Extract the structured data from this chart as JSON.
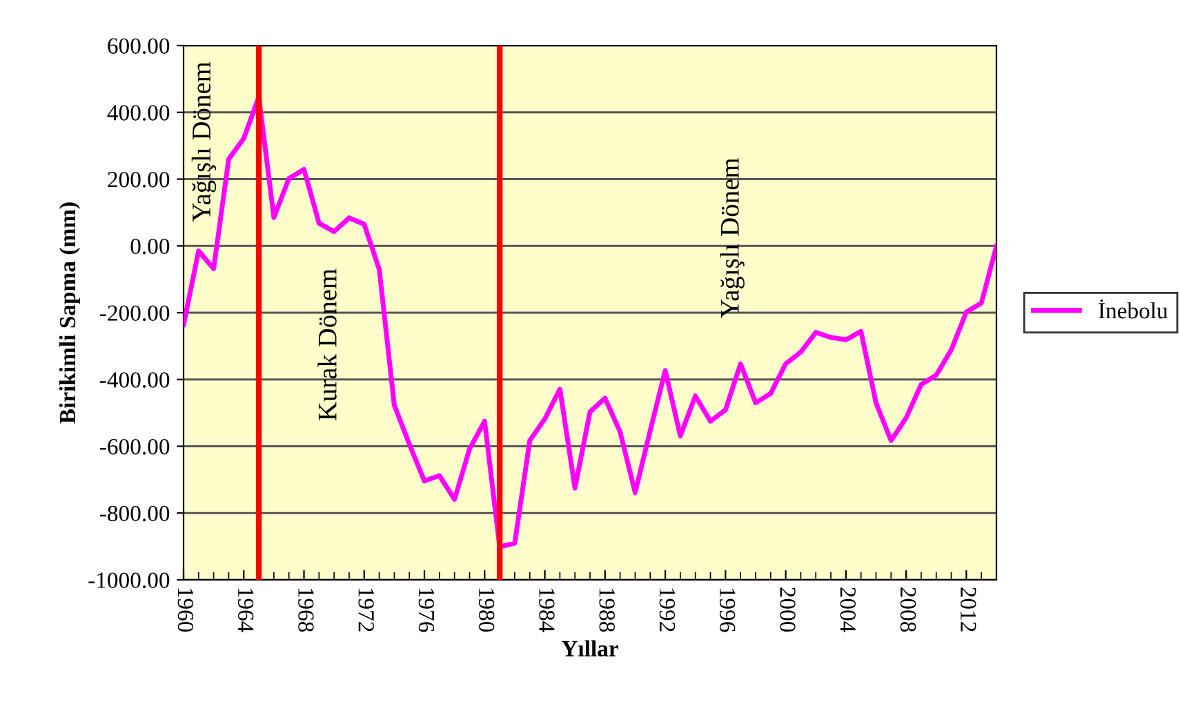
{
  "chart_data": {
    "type": "line",
    "xlabel": "Yıllar",
    "ylabel": "Birikimli Sapma (mm)",
    "x": [
      1960,
      1961,
      1962,
      1963,
      1964,
      1965,
      1966,
      1967,
      1968,
      1969,
      1970,
      1971,
      1972,
      1973,
      1974,
      1975,
      1976,
      1977,
      1978,
      1979,
      1980,
      1981,
      1982,
      1983,
      1984,
      1985,
      1986,
      1987,
      1988,
      1989,
      1990,
      1991,
      1992,
      1993,
      1994,
      1995,
      1996,
      1997,
      1998,
      1999,
      2000,
      2001,
      2002,
      2003,
      2004,
      2005,
      2006,
      2007,
      2008,
      2009,
      2010,
      2011,
      2012,
      2013,
      2014
    ],
    "series": [
      {
        "name": "İnebolu",
        "color": "#ff00ff",
        "values": [
          -236,
          -15,
          -68,
          260,
          322,
          446,
          85,
          202,
          229,
          68,
          43,
          84,
          65,
          -70,
          -477,
          -594,
          -704,
          -688,
          -759,
          -608,
          -525,
          -901,
          -890,
          -583,
          -518,
          -429,
          -725,
          -497,
          -456,
          -557,
          -739,
          -553,
          -373,
          -569,
          -449,
          -525,
          -491,
          -353,
          -470,
          -442,
          -353,
          -318,
          -259,
          -274,
          -281,
          -256,
          -470,
          -583,
          -515,
          -415,
          -387,
          -311,
          -198,
          -171,
          -1
        ]
      }
    ],
    "xlim": [
      1960,
      2014
    ],
    "xticks": [
      1960,
      1964,
      1968,
      1972,
      1976,
      1980,
      1984,
      1988,
      1992,
      1996,
      2000,
      2004,
      2008,
      2012
    ],
    "ylim": [
      -1000,
      600
    ],
    "yticks": [
      {
        "value": -1000,
        "label": "-1000.00"
      },
      {
        "value": -800,
        "label": "-800.00"
      },
      {
        "value": -600,
        "label": "-600.00"
      },
      {
        "value": -400,
        "label": "-400.00"
      },
      {
        "value": -200,
        "label": "-200.00"
      },
      {
        "value": 0,
        "label": "0.00"
      },
      {
        "value": 200,
        "label": "200.00"
      },
      {
        "value": 400,
        "label": "400.00"
      },
      {
        "value": 600,
        "label": "600.00"
      }
    ],
    "ref_lines": [
      {
        "axis": "x",
        "value": 1965,
        "color": "#ff0000"
      },
      {
        "axis": "x",
        "value": 1981,
        "color": "#ff0000"
      }
    ],
    "annotations": [
      "Yağışlı Dönem",
      "Kurak Dönem",
      "Yağışlı Dönem"
    ],
    "grid": "y",
    "legend": "right",
    "marker": "none",
    "line_style": "solid"
  }
}
